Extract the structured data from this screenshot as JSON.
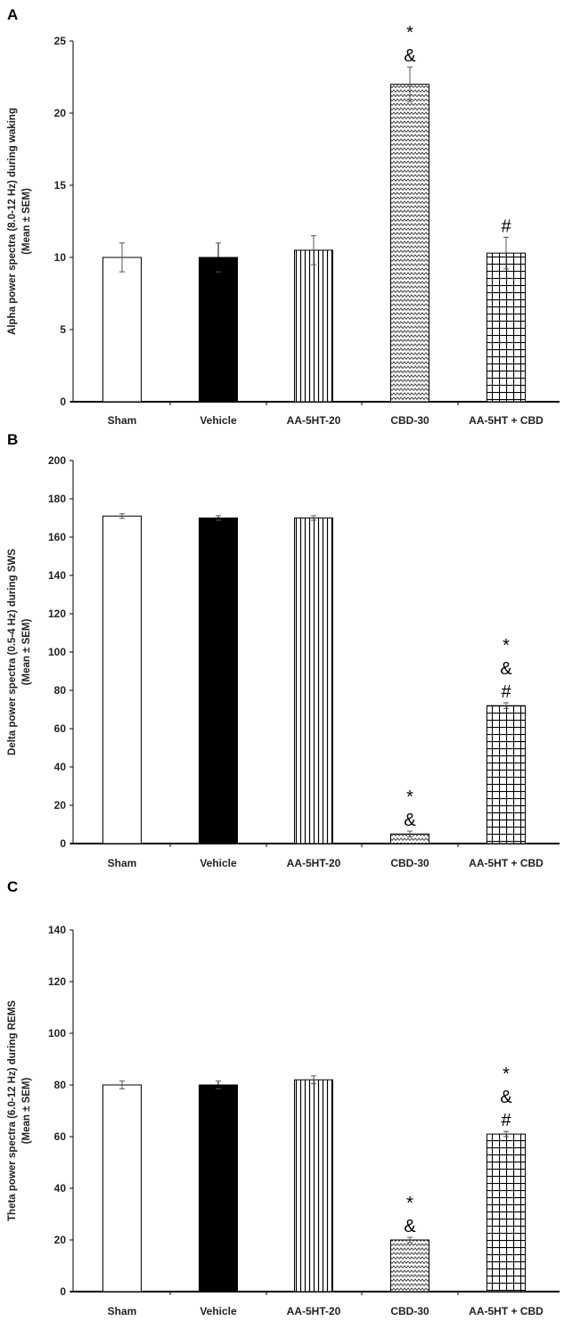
{
  "chart_data": [
    {
      "type": "bar",
      "panel_label": "A",
      "ylabel": [
        "Alpha power spectra (8.0-12 Hz) during waking",
        "(Mean ± SEM)"
      ],
      "categories": [
        "Sham",
        "Vehicle",
        "AA-5HT-20",
        "CBD-30",
        "AA-5HT + CBD"
      ],
      "values": [
        10,
        10,
        10.5,
        22,
        10.3
      ],
      "errors": [
        1,
        1,
        1,
        1.2,
        1.1
      ],
      "annotations": [
        [],
        [],
        [],
        [
          "*",
          "&"
        ],
        [
          "#"
        ]
      ],
      "ylim": [
        0,
        25
      ],
      "yticks": [
        0,
        5,
        10,
        15,
        20,
        25
      ]
    },
    {
      "type": "bar",
      "panel_label": "B",
      "ylabel": [
        "Delta power spectra (0.5-4 Hz) during SWS",
        "(Mean ± SEM)"
      ],
      "categories": [
        "Sham",
        "Vehicle",
        "AA-5HT-20",
        "CBD-30",
        "AA-5HT + CBD"
      ],
      "values": [
        171,
        170,
        170,
        5,
        72
      ],
      "errors": [
        1.2,
        1.2,
        1.2,
        1.5,
        1.5
      ],
      "annotations": [
        [],
        [],
        [],
        [
          "*",
          "&"
        ],
        [
          "*",
          "&",
          "#"
        ]
      ],
      "ylim": [
        0,
        200
      ],
      "yticks": [
        0,
        20,
        40,
        60,
        80,
        100,
        120,
        140,
        160,
        180,
        200
      ]
    },
    {
      "type": "bar",
      "panel_label": "C",
      "ylabel": [
        "Theta power spectra (6.0-12 Hz) during REMS",
        "(Mean ± SEM)"
      ],
      "categories": [
        "Sham",
        "Vehicle",
        "AA-5HT-20",
        "CBD-30",
        "AA-5HT + CBD"
      ],
      "values": [
        80,
        80,
        82,
        20,
        61
      ],
      "errors": [
        1.5,
        1.5,
        1.5,
        1,
        1
      ],
      "annotations": [
        [],
        [],
        [],
        [
          "*",
          "&"
        ],
        [
          "*",
          "&",
          "#"
        ]
      ],
      "ylim": [
        0,
        140
      ],
      "yticks": [
        0,
        20,
        40,
        60,
        80,
        100,
        120,
        140
      ]
    }
  ],
  "fills": [
    "white",
    "black",
    "vertical-lines",
    "zigzag",
    "grid"
  ]
}
